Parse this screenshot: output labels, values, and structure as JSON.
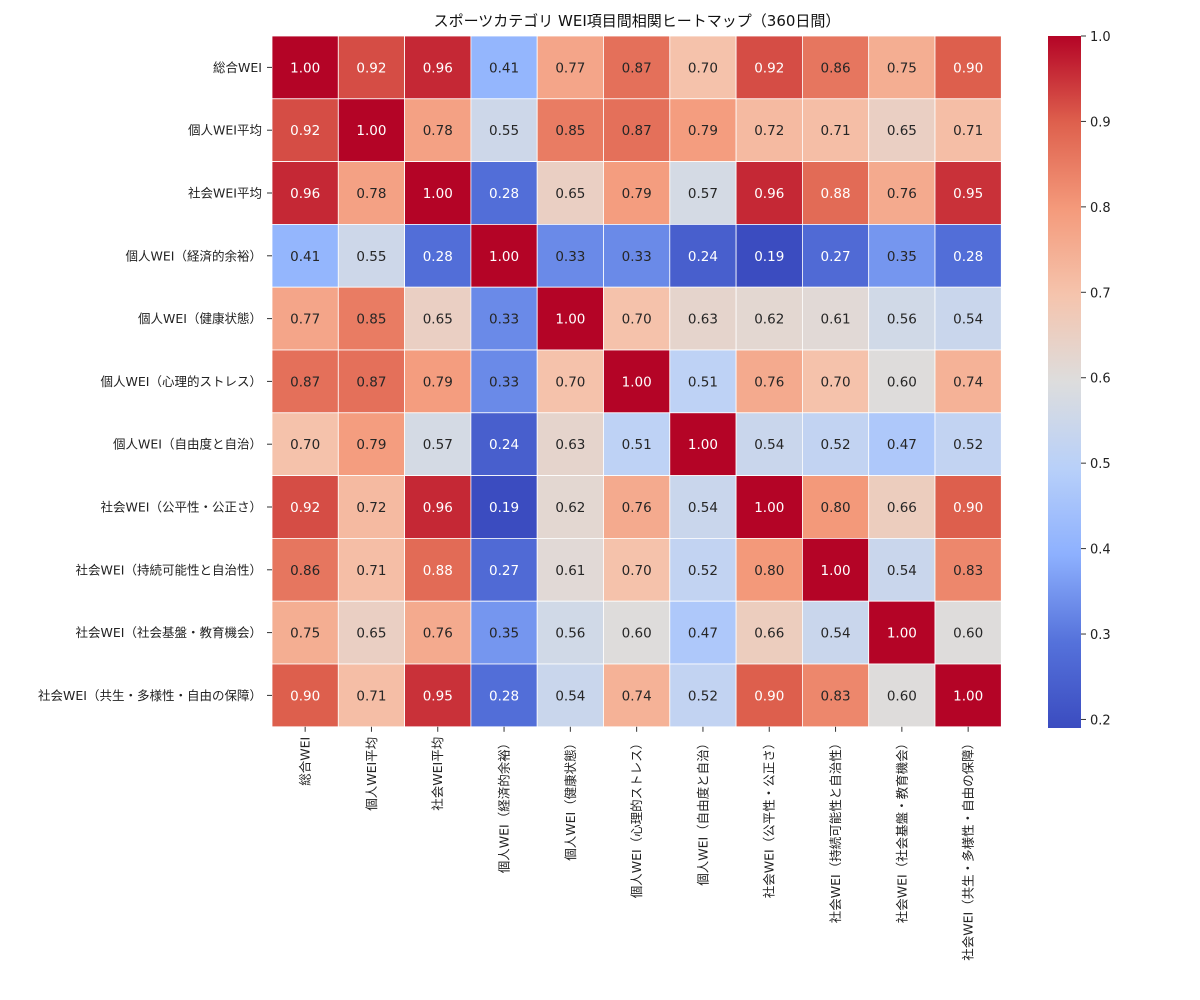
{
  "chart_data": {
    "type": "heatmap",
    "title": "スポーツカテゴリ WEI項目間相関ヒートマップ（360日間）",
    "labels": [
      "総合WEI",
      "個人WEI平均",
      "社会WEI平均",
      "個人WEI（経済的余裕）",
      "個人WEI（健康状態）",
      "個人WEI（心理的ストレス）",
      "個人WEI（自由度と自治）",
      "社会WEI（公平性・公正さ）",
      "社会WEI（持続可能性と自治性）",
      "社会WEI（社会基盤・教育機会）",
      "社会WEI（共生・多様性・自由の保障）"
    ],
    "values": [
      [
        1.0,
        0.92,
        0.96,
        0.41,
        0.77,
        0.87,
        0.7,
        0.92,
        0.86,
        0.75,
        0.9
      ],
      [
        0.92,
        1.0,
        0.78,
        0.55,
        0.85,
        0.87,
        0.79,
        0.72,
        0.71,
        0.65,
        0.71
      ],
      [
        0.96,
        0.78,
        1.0,
        0.28,
        0.65,
        0.79,
        0.57,
        0.96,
        0.88,
        0.76,
        0.95
      ],
      [
        0.41,
        0.55,
        0.28,
        1.0,
        0.33,
        0.33,
        0.24,
        0.19,
        0.27,
        0.35,
        0.28
      ],
      [
        0.77,
        0.85,
        0.65,
        0.33,
        1.0,
        0.7,
        0.63,
        0.62,
        0.61,
        0.56,
        0.54
      ],
      [
        0.87,
        0.87,
        0.79,
        0.33,
        0.7,
        1.0,
        0.51,
        0.76,
        0.7,
        0.6,
        0.74
      ],
      [
        0.7,
        0.79,
        0.57,
        0.24,
        0.63,
        0.51,
        1.0,
        0.54,
        0.52,
        0.47,
        0.52
      ],
      [
        0.92,
        0.72,
        0.96,
        0.19,
        0.62,
        0.76,
        0.54,
        1.0,
        0.8,
        0.66,
        0.9
      ],
      [
        0.86,
        0.71,
        0.88,
        0.27,
        0.61,
        0.7,
        0.52,
        0.8,
        1.0,
        0.54,
        0.83
      ],
      [
        0.75,
        0.65,
        0.76,
        0.35,
        0.56,
        0.6,
        0.47,
        0.66,
        0.54,
        1.0,
        0.6
      ],
      [
        0.9,
        0.71,
        0.95,
        0.28,
        0.54,
        0.74,
        0.52,
        0.9,
        0.83,
        0.6,
        1.0
      ]
    ],
    "value_format": "2 decimals",
    "colormap": "coolwarm",
    "vmin": 0.19,
    "vmax": 1.0,
    "colorbar_ticks": [
      0.2,
      0.3,
      0.4,
      0.5,
      0.6,
      0.7,
      0.8,
      0.9,
      1.0
    ],
    "colorbar_tick_labels": [
      "0.2",
      "0.3",
      "0.4",
      "0.5",
      "0.6",
      "0.7",
      "0.8",
      "0.9",
      "1.0"
    ],
    "grid": false,
    "legend": "colorbar-right"
  }
}
